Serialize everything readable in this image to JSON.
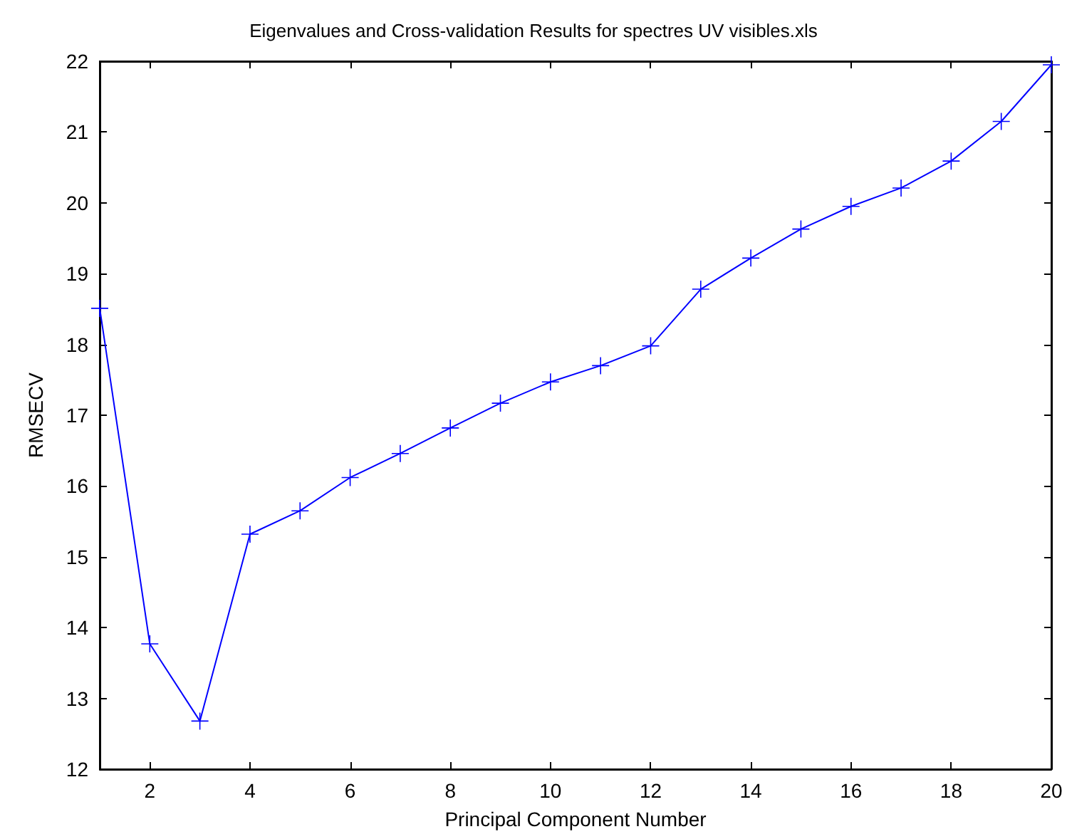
{
  "chart_data": {
    "type": "line",
    "title": "Eigenvalues and Cross-validation Results for spectres UV visibles.xls",
    "xlabel": "Principal Component Number",
    "ylabel": "RMSECV",
    "x": [
      1,
      2,
      3,
      4,
      5,
      6,
      7,
      8,
      9,
      10,
      11,
      12,
      13,
      14,
      15,
      16,
      17,
      18,
      19,
      20
    ],
    "series": [
      {
        "color": "#0000ff",
        "values": [
          18.51,
          13.77,
          12.68,
          15.32,
          15.65,
          16.12,
          16.46,
          16.82,
          17.17,
          17.47,
          17.7,
          17.98,
          18.78,
          19.22,
          19.63,
          19.95,
          20.21,
          20.59,
          21.15,
          21.95
        ]
      }
    ],
    "xlim": [
      1,
      20
    ],
    "xticks": [
      2,
      4,
      6,
      8,
      10,
      12,
      14,
      16,
      18,
      20
    ],
    "ylim": [
      12,
      22
    ],
    "yticks": [
      12,
      13,
      14,
      15,
      16,
      17,
      18,
      19,
      20,
      21,
      22
    ],
    "marker": "cross",
    "line_style": "solid"
  }
}
